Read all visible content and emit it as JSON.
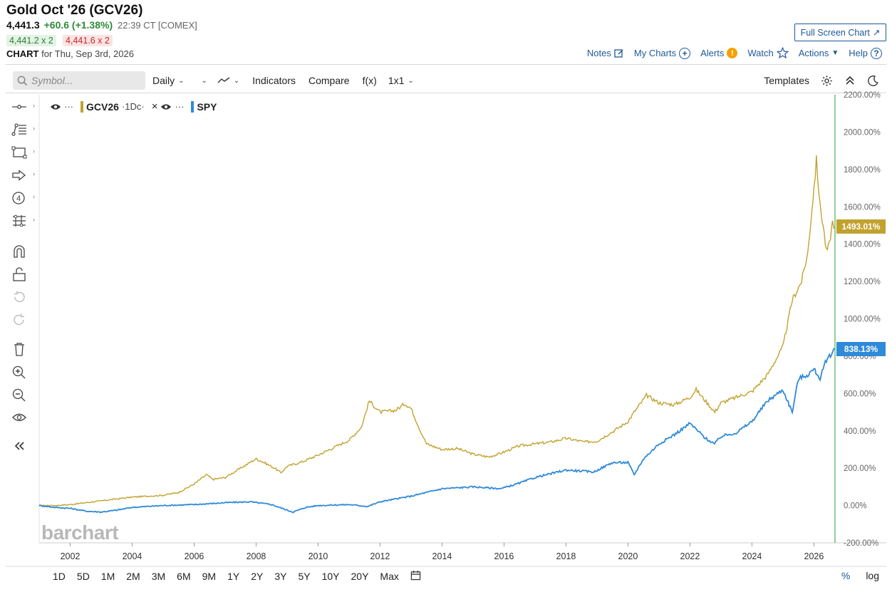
{
  "header": {
    "title": "Gold Oct '26 (GCV26)",
    "last": "4,441.3",
    "change": "+60.6 (+1.38%)",
    "time": "22:39 CT [COMEX]",
    "bid": "4,441.2 x 2",
    "ask": "4,441.6 x 2",
    "chart_label": "CHART",
    "chart_for": "for Thu, Sep 3rd, 2026",
    "fullscreen_label": "Full Screen Chart"
  },
  "toplinks": {
    "notes": "Notes",
    "my_charts": "My Charts",
    "alerts": "Alerts",
    "watch": "Watch",
    "actions": "Actions",
    "help": "Help"
  },
  "toolbar": {
    "search_placeholder": "Symbol...",
    "period": "Daily",
    "indicators": "Indicators",
    "compare": "Compare",
    "fx": "f(x)",
    "layout": "1x1",
    "templates": "Templates"
  },
  "lefttools": [
    "crosshair-icon",
    "trendline-icon",
    "rectangle-icon",
    "arrow-icon",
    "count-icon",
    "measure-icon",
    "magnet-icon",
    "lock-icon",
    "undo-icon",
    "redo-icon",
    "trash-icon",
    "zoom-in-icon",
    "zoom-out-icon",
    "eye-icon",
    "collapse-icon"
  ],
  "legend": {
    "s1_symbol": "GCV26",
    "s1_interval": "·1Dc·",
    "s2_symbol": "SPY"
  },
  "logo": "barchart",
  "chart_data": {
    "type": "line",
    "yscale": "percent",
    "ylim": [
      -200,
      2200
    ],
    "yticks": [
      "2200.00%",
      "2000.00%",
      "1800.00%",
      "1600.00%",
      "1400.00%",
      "1200.00%",
      "1000.00%",
      "800.00%",
      "600.00%",
      "400.00%",
      "200.00%",
      "0.00%",
      "-200.00%"
    ],
    "ytick_values": [
      2200,
      2000,
      1800,
      1600,
      1400,
      1200,
      1000,
      800,
      600,
      400,
      200,
      0,
      -200
    ],
    "xticks": [
      "2002",
      "2004",
      "2006",
      "2008",
      "2010",
      "2012",
      "2014",
      "2016",
      "2018",
      "2020",
      "2022",
      "2024",
      "2026"
    ],
    "xtick_values": [
      2002,
      2004,
      2006,
      2008,
      2010,
      2012,
      2014,
      2016,
      2018,
      2020,
      2022,
      2024,
      2026
    ],
    "xlim": [
      2001.0,
      2026.68
    ],
    "series": [
      {
        "name": "GCV26",
        "color": "#c2a22f",
        "last_label": "1493.01%",
        "last_value": 1493.01,
        "x": [
          2001.0,
          2001.5,
          2002.0,
          2002.5,
          2003.0,
          2003.5,
          2004.0,
          2004.5,
          2005.0,
          2005.5,
          2006.0,
          2006.4,
          2006.6,
          2007.0,
          2007.5,
          2008.0,
          2008.2,
          2008.6,
          2008.8,
          2009.0,
          2009.5,
          2010.0,
          2010.5,
          2011.0,
          2011.4,
          2011.65,
          2012.0,
          2012.5,
          2012.8,
          2013.0,
          2013.3,
          2013.5,
          2014.0,
          2014.5,
          2015.0,
          2015.5,
          2015.9,
          2016.5,
          2017.0,
          2017.5,
          2018.0,
          2018.6,
          2019.0,
          2019.5,
          2020.0,
          2020.2,
          2020.6,
          2021.0,
          2021.5,
          2022.0,
          2022.2,
          2022.8,
          2023.0,
          2023.5,
          2024.0,
          2024.5,
          2025.0,
          2025.3,
          2025.6,
          2025.8,
          2026.0,
          2026.08,
          2026.2,
          2026.3,
          2026.4,
          2026.5,
          2026.6,
          2026.68
        ],
        "values": [
          0,
          0,
          5,
          15,
          25,
          35,
          45,
          50,
          55,
          70,
          115,
          165,
          140,
          150,
          200,
          250,
          235,
          200,
          175,
          210,
          235,
          270,
          310,
          350,
          420,
          560,
          500,
          510,
          545,
          520,
          400,
          330,
          300,
          305,
          275,
          260,
          280,
          320,
          330,
          340,
          360,
          340,
          345,
          395,
          450,
          500,
          590,
          550,
          540,
          580,
          620,
          500,
          550,
          580,
          610,
          700,
          850,
          1100,
          1200,
          1350,
          1700,
          1850,
          1600,
          1500,
          1360,
          1400,
          1520,
          1493
        ]
      },
      {
        "name": "SPY",
        "color": "#2f8ad8",
        "last_label": "838.13%",
        "last_value": 838.13,
        "x": [
          2001.0,
          2001.5,
          2002.0,
          2002.5,
          2003.0,
          2003.5,
          2004.0,
          2005.0,
          2006.0,
          2007.0,
          2007.8,
          2008.5,
          2009.0,
          2009.2,
          2009.6,
          2010.0,
          2011.0,
          2011.6,
          2012.0,
          2013.0,
          2014.0,
          2015.0,
          2015.9,
          2016.5,
          2017.0,
          2018.0,
          2018.9,
          2019.5,
          2020.0,
          2020.2,
          2020.5,
          2021.0,
          2021.5,
          2022.0,
          2022.5,
          2022.8,
          2023.0,
          2023.5,
          2024.0,
          2024.5,
          2025.0,
          2025.3,
          2025.5,
          2025.8,
          2026.0,
          2026.2,
          2026.4,
          2026.6,
          2026.68
        ],
        "values": [
          0,
          -10,
          -15,
          -30,
          -35,
          -25,
          -10,
          0,
          5,
          15,
          20,
          5,
          -25,
          -35,
          -10,
          0,
          5,
          -5,
          20,
          50,
          90,
          100,
          90,
          120,
          150,
          190,
          180,
          230,
          230,
          165,
          250,
          330,
          380,
          440,
          360,
          330,
          370,
          390,
          450,
          560,
          620,
          500,
          680,
          700,
          730,
          680,
          780,
          820,
          838
        ]
      }
    ]
  }
}
